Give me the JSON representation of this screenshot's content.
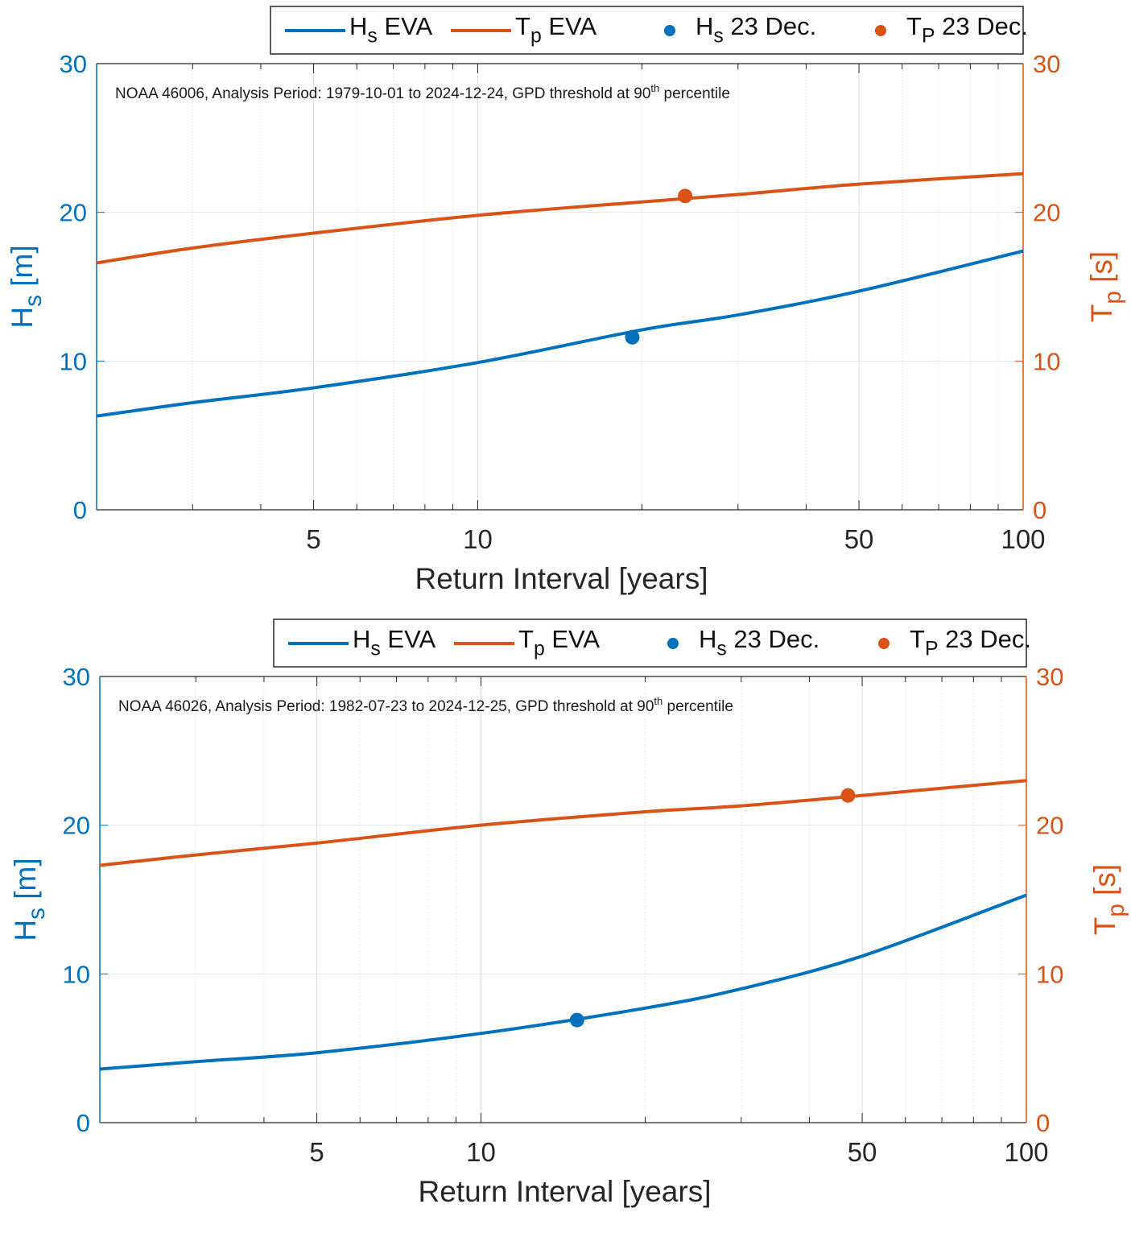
{
  "colors": {
    "hs": "#0072BD",
    "tp": "#D95319",
    "grid": "#dfe3e8",
    "axis": "#262626"
  },
  "chart_data": [
    {
      "type": "line",
      "annotation": {
        "text": "NOAA 46006, Analysis Period: 1979-10-01 to 2024-12-24, GPD threshold at 90",
        "sup": "th",
        "tail": " percentile"
      },
      "xlabel": "Return Interval [years]",
      "xscale": "log",
      "xlim": [
        2,
        100
      ],
      "xticks": [
        5,
        10,
        50,
        100
      ],
      "xtick_labels": [
        "5",
        "10",
        "50",
        "100"
      ],
      "ylabel_left": {
        "main": "H",
        "sub": "s",
        "tail": " [m]"
      },
      "ylabel_right": {
        "main": "T",
        "sub": "p",
        "tail": " [s]"
      },
      "ylim_left": [
        0,
        30
      ],
      "ylim_right": [
        0,
        30
      ],
      "yticks": [
        0,
        10,
        20,
        30
      ],
      "ytick_labels": [
        "0",
        "10",
        "20",
        "30"
      ],
      "grid": true,
      "legend_placement": "top-outside",
      "legend": [
        {
          "main": "H",
          "sub": "s",
          "tail": " EVA",
          "kind": "line",
          "color": "#0072BD"
        },
        {
          "main": "T",
          "sub": "p",
          "tail": " EVA",
          "kind": "line",
          "color": "#D95319"
        },
        {
          "main": "H",
          "sub": "s",
          "tail": " 23 Dec.",
          "kind": "marker",
          "color": "#0072BD"
        },
        {
          "main": "T",
          "sub": "P",
          "tail": " 23 Dec.",
          "kind": "marker",
          "color": "#D95319"
        }
      ],
      "series": [
        {
          "name": "Hs EVA",
          "axis": "left",
          "x": [
            2,
            3,
            5,
            10,
            20,
            30,
            50,
            100
          ],
          "y": [
            6.3,
            7.2,
            8.2,
            9.9,
            12.1,
            13.1,
            14.7,
            17.4
          ]
        },
        {
          "name": "Tp EVA",
          "axis": "right",
          "x": [
            2,
            3,
            5,
            10,
            20,
            30,
            50,
            100
          ],
          "y": [
            16.6,
            17.6,
            18.6,
            19.8,
            20.7,
            21.2,
            21.9,
            22.6
          ]
        }
      ],
      "points": [
        {
          "name": "Hs 23 Dec.",
          "axis": "left",
          "x": 19.2,
          "y": 11.6
        },
        {
          "name": "Tp 23 Dec.",
          "axis": "right",
          "x": 24.0,
          "y": 21.1
        }
      ]
    },
    {
      "type": "line",
      "annotation": {
        "text": "NOAA 46026, Analysis Period: 1982-07-23 to 2024-12-25, GPD threshold at 90",
        "sup": "th",
        "tail": " percentile"
      },
      "xlabel": "Return Interval [years]",
      "xscale": "log",
      "xlim": [
        2,
        100
      ],
      "xticks": [
        5,
        10,
        50,
        100
      ],
      "xtick_labels": [
        "5",
        "10",
        "50",
        "100"
      ],
      "ylabel_left": {
        "main": "H",
        "sub": "s",
        "tail": " [m]"
      },
      "ylabel_right": {
        "main": "T",
        "sub": "p",
        "tail": " [s]"
      },
      "ylim_left": [
        0,
        30
      ],
      "ylim_right": [
        0,
        30
      ],
      "yticks": [
        0,
        10,
        20,
        30
      ],
      "ytick_labels": [
        "0",
        "10",
        "20",
        "30"
      ],
      "grid": true,
      "legend_placement": "top-outside",
      "legend": [
        {
          "main": "H",
          "sub": "s",
          "tail": " EVA",
          "kind": "line",
          "color": "#0072BD"
        },
        {
          "main": "T",
          "sub": "p",
          "tail": " EVA",
          "kind": "line",
          "color": "#D95319"
        },
        {
          "main": "H",
          "sub": "s",
          "tail": " 23 Dec.",
          "kind": "marker",
          "color": "#0072BD"
        },
        {
          "main": "T",
          "sub": "P",
          "tail": " 23 Dec.",
          "kind": "marker",
          "color": "#D95319"
        }
      ],
      "series": [
        {
          "name": "Hs EVA",
          "axis": "left",
          "x": [
            2,
            3,
            5,
            10,
            20,
            30,
            50,
            100
          ],
          "y": [
            3.6,
            4.1,
            4.7,
            6.0,
            7.7,
            9.0,
            11.2,
            15.3
          ]
        },
        {
          "name": "Tp EVA",
          "axis": "right",
          "x": [
            2,
            3,
            5,
            10,
            20,
            30,
            50,
            100
          ],
          "y": [
            17.3,
            18.0,
            18.8,
            20.0,
            20.9,
            21.3,
            22.0,
            23.0
          ]
        }
      ],
      "points": [
        {
          "name": "Hs 23 Dec.",
          "axis": "left",
          "x": 15.0,
          "y": 6.9
        },
        {
          "name": "Tp 23 Dec.",
          "axis": "right",
          "x": 47.1,
          "y": 22.0
        }
      ]
    }
  ]
}
